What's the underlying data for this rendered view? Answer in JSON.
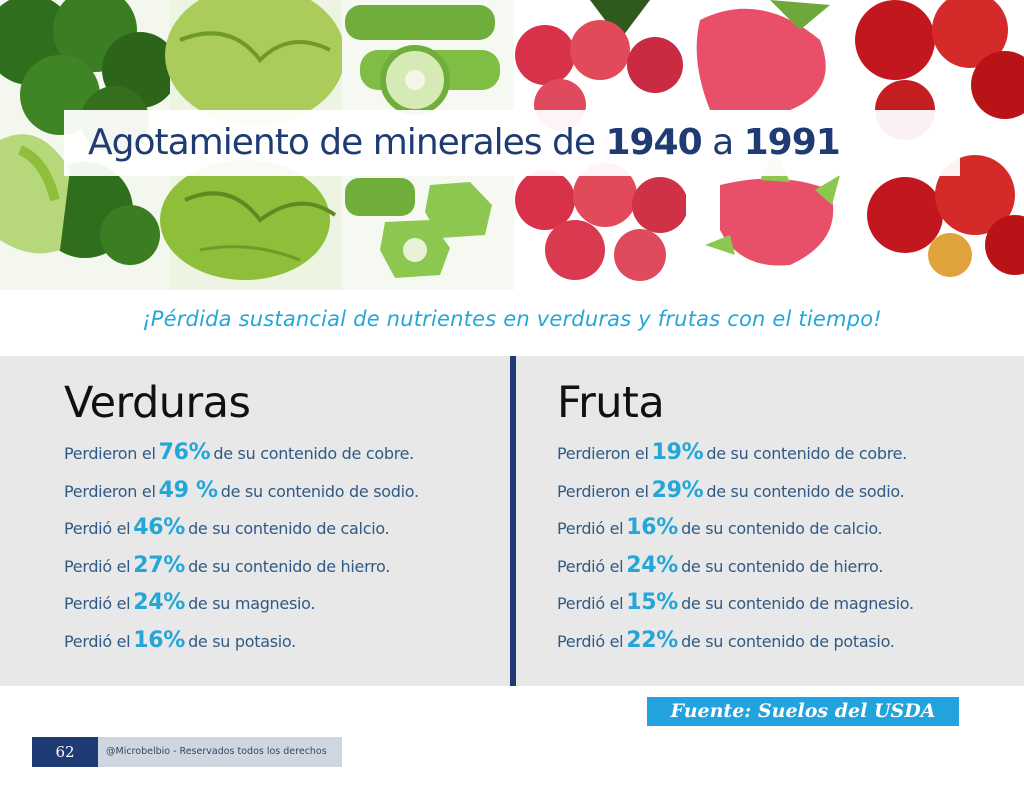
{
  "title": {
    "prefix": "Agotamiento de minerales de",
    "year_start": "1940",
    "connector": "a",
    "year_end": "1991"
  },
  "subtitle": "¡Pérdida sustancial de nutrientes en verduras y frutas con el tiempo!",
  "banner": {
    "images": [
      "broccoli",
      "savoy-cabbage",
      "okra",
      "lychee",
      "dragon-fruit",
      "rambutan"
    ],
    "colors": {
      "green_dark": "#2f6e1c",
      "green_light": "#8fbf3a",
      "red": "#d8324a",
      "pink": "#e8506a",
      "rambutan": "#c3171f"
    }
  },
  "verduras": {
    "heading": "Verduras",
    "items": [
      {
        "pre": "Perdieron el",
        "pct": "76%",
        "post": "de su contenido de cobre."
      },
      {
        "pre": "Perdieron el",
        "pct": "49 %",
        "post": "de su contenido de sodio."
      },
      {
        "pre": "Perdió el",
        "pct": "46%",
        "post": "de su contenido de calcio."
      },
      {
        "pre": "Perdió el",
        "pct": "27%",
        "post": "de su contenido de hierro."
      },
      {
        "pre": "Perdió el",
        "pct": "24%",
        "post": "de su magnesio."
      },
      {
        "pre": "Perdió el",
        "pct": "16%",
        "post": "de su potasio."
      }
    ]
  },
  "fruta": {
    "heading": "Fruta",
    "items": [
      {
        "pre": "Perdieron el",
        "pct": "19%",
        "post": "de su contenido de cobre."
      },
      {
        "pre": "Perdieron el",
        "pct": "29%",
        "post": "de su contenido de sodio."
      },
      {
        "pre": "Perdió el",
        "pct": "16%",
        "post": "de su contenido de calcio."
      },
      {
        "pre": "Perdió el",
        "pct": "24%",
        "post": "de su contenido de hierro."
      },
      {
        "pre": "Perdió el",
        "pct": "15%",
        "post": "de su contenido de magnesio."
      },
      {
        "pre": "Perdió el",
        "pct": "22%",
        "post": "de su contenido de potasio."
      }
    ]
  },
  "source": "Fuente: Suelos del USDA",
  "footer": {
    "page_number": "62",
    "copyright": "@Microbelbio - Reservados todos los derechos"
  },
  "colors": {
    "navy": "#1f3b73",
    "accent_blue": "#25a6d9",
    "panel_gray": "#e8e8e8"
  }
}
